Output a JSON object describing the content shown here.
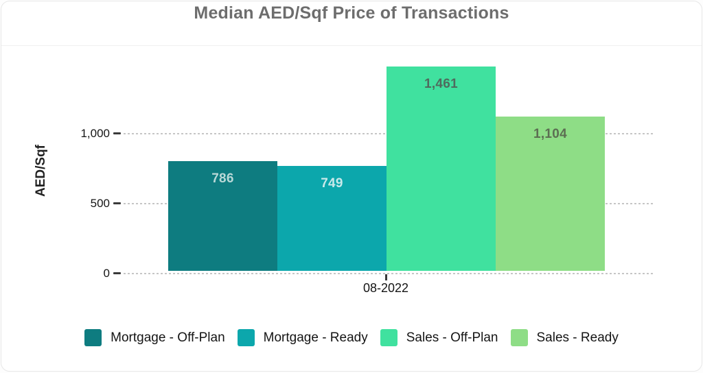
{
  "title": "Median AED/Sqf Price of Transactions",
  "chart_data": {
    "type": "bar",
    "title": "Median AED/Sqf Price of Transactions",
    "xlabel": "",
    "ylabel": "AED/Sqf",
    "x_category": "08-2022",
    "ylim": [
      0,
      1530
    ],
    "grid": "horizontal-dotted",
    "legend_position": "bottom",
    "y_ticks": [
      {
        "value": 0,
        "label": "0"
      },
      {
        "value": 500,
        "label": "500"
      },
      {
        "value": 1000,
        "label": "1,000"
      }
    ],
    "series": [
      {
        "name": "Mortgage - Off-Plan",
        "value": 786,
        "display": "786",
        "color": "#0e7c80",
        "label_color": "#b9d8d7"
      },
      {
        "name": "Mortgage - Ready",
        "value": 749,
        "display": "749",
        "color": "#0ca7ac",
        "label_color": "#c9e9ea"
      },
      {
        "name": "Sales - Off-Plan",
        "value": 1461,
        "display": "1,461",
        "color": "#40e19f",
        "label_color": "#4f6b5e"
      },
      {
        "name": "Sales - Ready",
        "value": 1104,
        "display": "1,104",
        "color": "#8edd86",
        "label_color": "#5c6e52"
      }
    ]
  },
  "colors": {
    "title_text": "#6d6d6d",
    "axis_text": "#141414",
    "gridline": "#c6c6c6",
    "card_border": "#e7e7e7",
    "divider": "#f0f0f0"
  }
}
